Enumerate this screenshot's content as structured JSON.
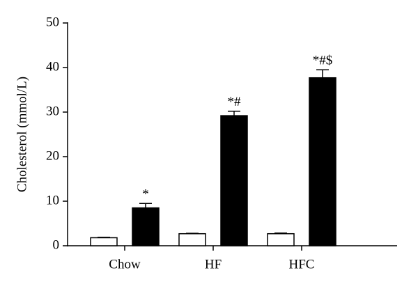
{
  "chart_data": {
    "type": "bar",
    "y_label": "Cholesterol (mmol/L)",
    "categories": [
      "Chow",
      "HF",
      "HFC"
    ],
    "series": [
      {
        "color": "#ffffff",
        "values": [
          1.8,
          2.7,
          2.7
        ],
        "errors": [
          0.1,
          0.1,
          0.15
        ]
      },
      {
        "color": "#000000",
        "values": [
          8.5,
          29.2,
          37.7
        ],
        "errors": [
          1.0,
          1.0,
          1.8
        ],
        "annotations": [
          "*",
          "*#",
          "*#$"
        ]
      }
    ],
    "ylim": [
      0,
      50
    ],
    "yticks": [
      0,
      10,
      20,
      30,
      40,
      50
    ]
  }
}
